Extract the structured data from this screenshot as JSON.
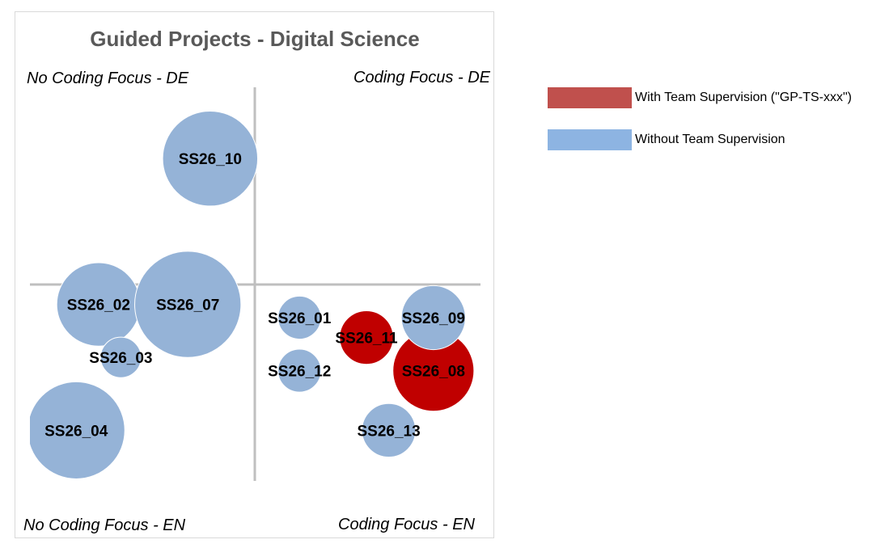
{
  "chart_data": {
    "type": "bubble",
    "title": "Guided Projects - Digital Science",
    "xlabel": "",
    "ylabel": "",
    "xlim": [
      -3,
      3
    ],
    "ylim": [
      -3,
      3
    ],
    "quadrant_labels": {
      "top_left": "No Coding Focus - DE",
      "top_right": "Coding Focus - DE",
      "bottom_left": "No Coding Focus - EN",
      "bottom_right": "Coding Focus - EN"
    },
    "series": [
      {
        "name": "With Team Supervision (\"GP-TS-xxx\")",
        "color": "#c00000",
        "legend_color": "#c0504d",
        "points": [
          {
            "label": "SS26_11",
            "x": 1.5,
            "y": -0.8,
            "size": 1.4
          },
          {
            "label": "SS26_08",
            "x": 2.4,
            "y": -1.3,
            "size": 3.2
          }
        ]
      },
      {
        "name": "Without Team Supervision",
        "color": "#95b3d7",
        "legend_color": "#8db4e2",
        "points": [
          {
            "label": "SS26_10",
            "x": -0.6,
            "y": 1.9,
            "size": 4.4
          },
          {
            "label": "SS26_02",
            "x": -2.1,
            "y": -0.3,
            "size": 3.4
          },
          {
            "label": "SS26_07",
            "x": -0.9,
            "y": -0.3,
            "size": 5.5
          },
          {
            "label": "SS26_03",
            "x": -1.8,
            "y": -1.1,
            "size": 0.8
          },
          {
            "label": "SS26_04",
            "x": -2.4,
            "y": -2.2,
            "size": 4.6
          },
          {
            "label": "SS26_01",
            "x": 0.6,
            "y": -0.5,
            "size": 0.9
          },
          {
            "label": "SS26_09",
            "x": 2.4,
            "y": -0.5,
            "size": 2.0
          },
          {
            "label": "SS26_12",
            "x": 0.6,
            "y": -1.3,
            "size": 0.9
          },
          {
            "label": "SS26_13",
            "x": 1.8,
            "y": -2.2,
            "size": 1.4
          }
        ]
      }
    ]
  }
}
